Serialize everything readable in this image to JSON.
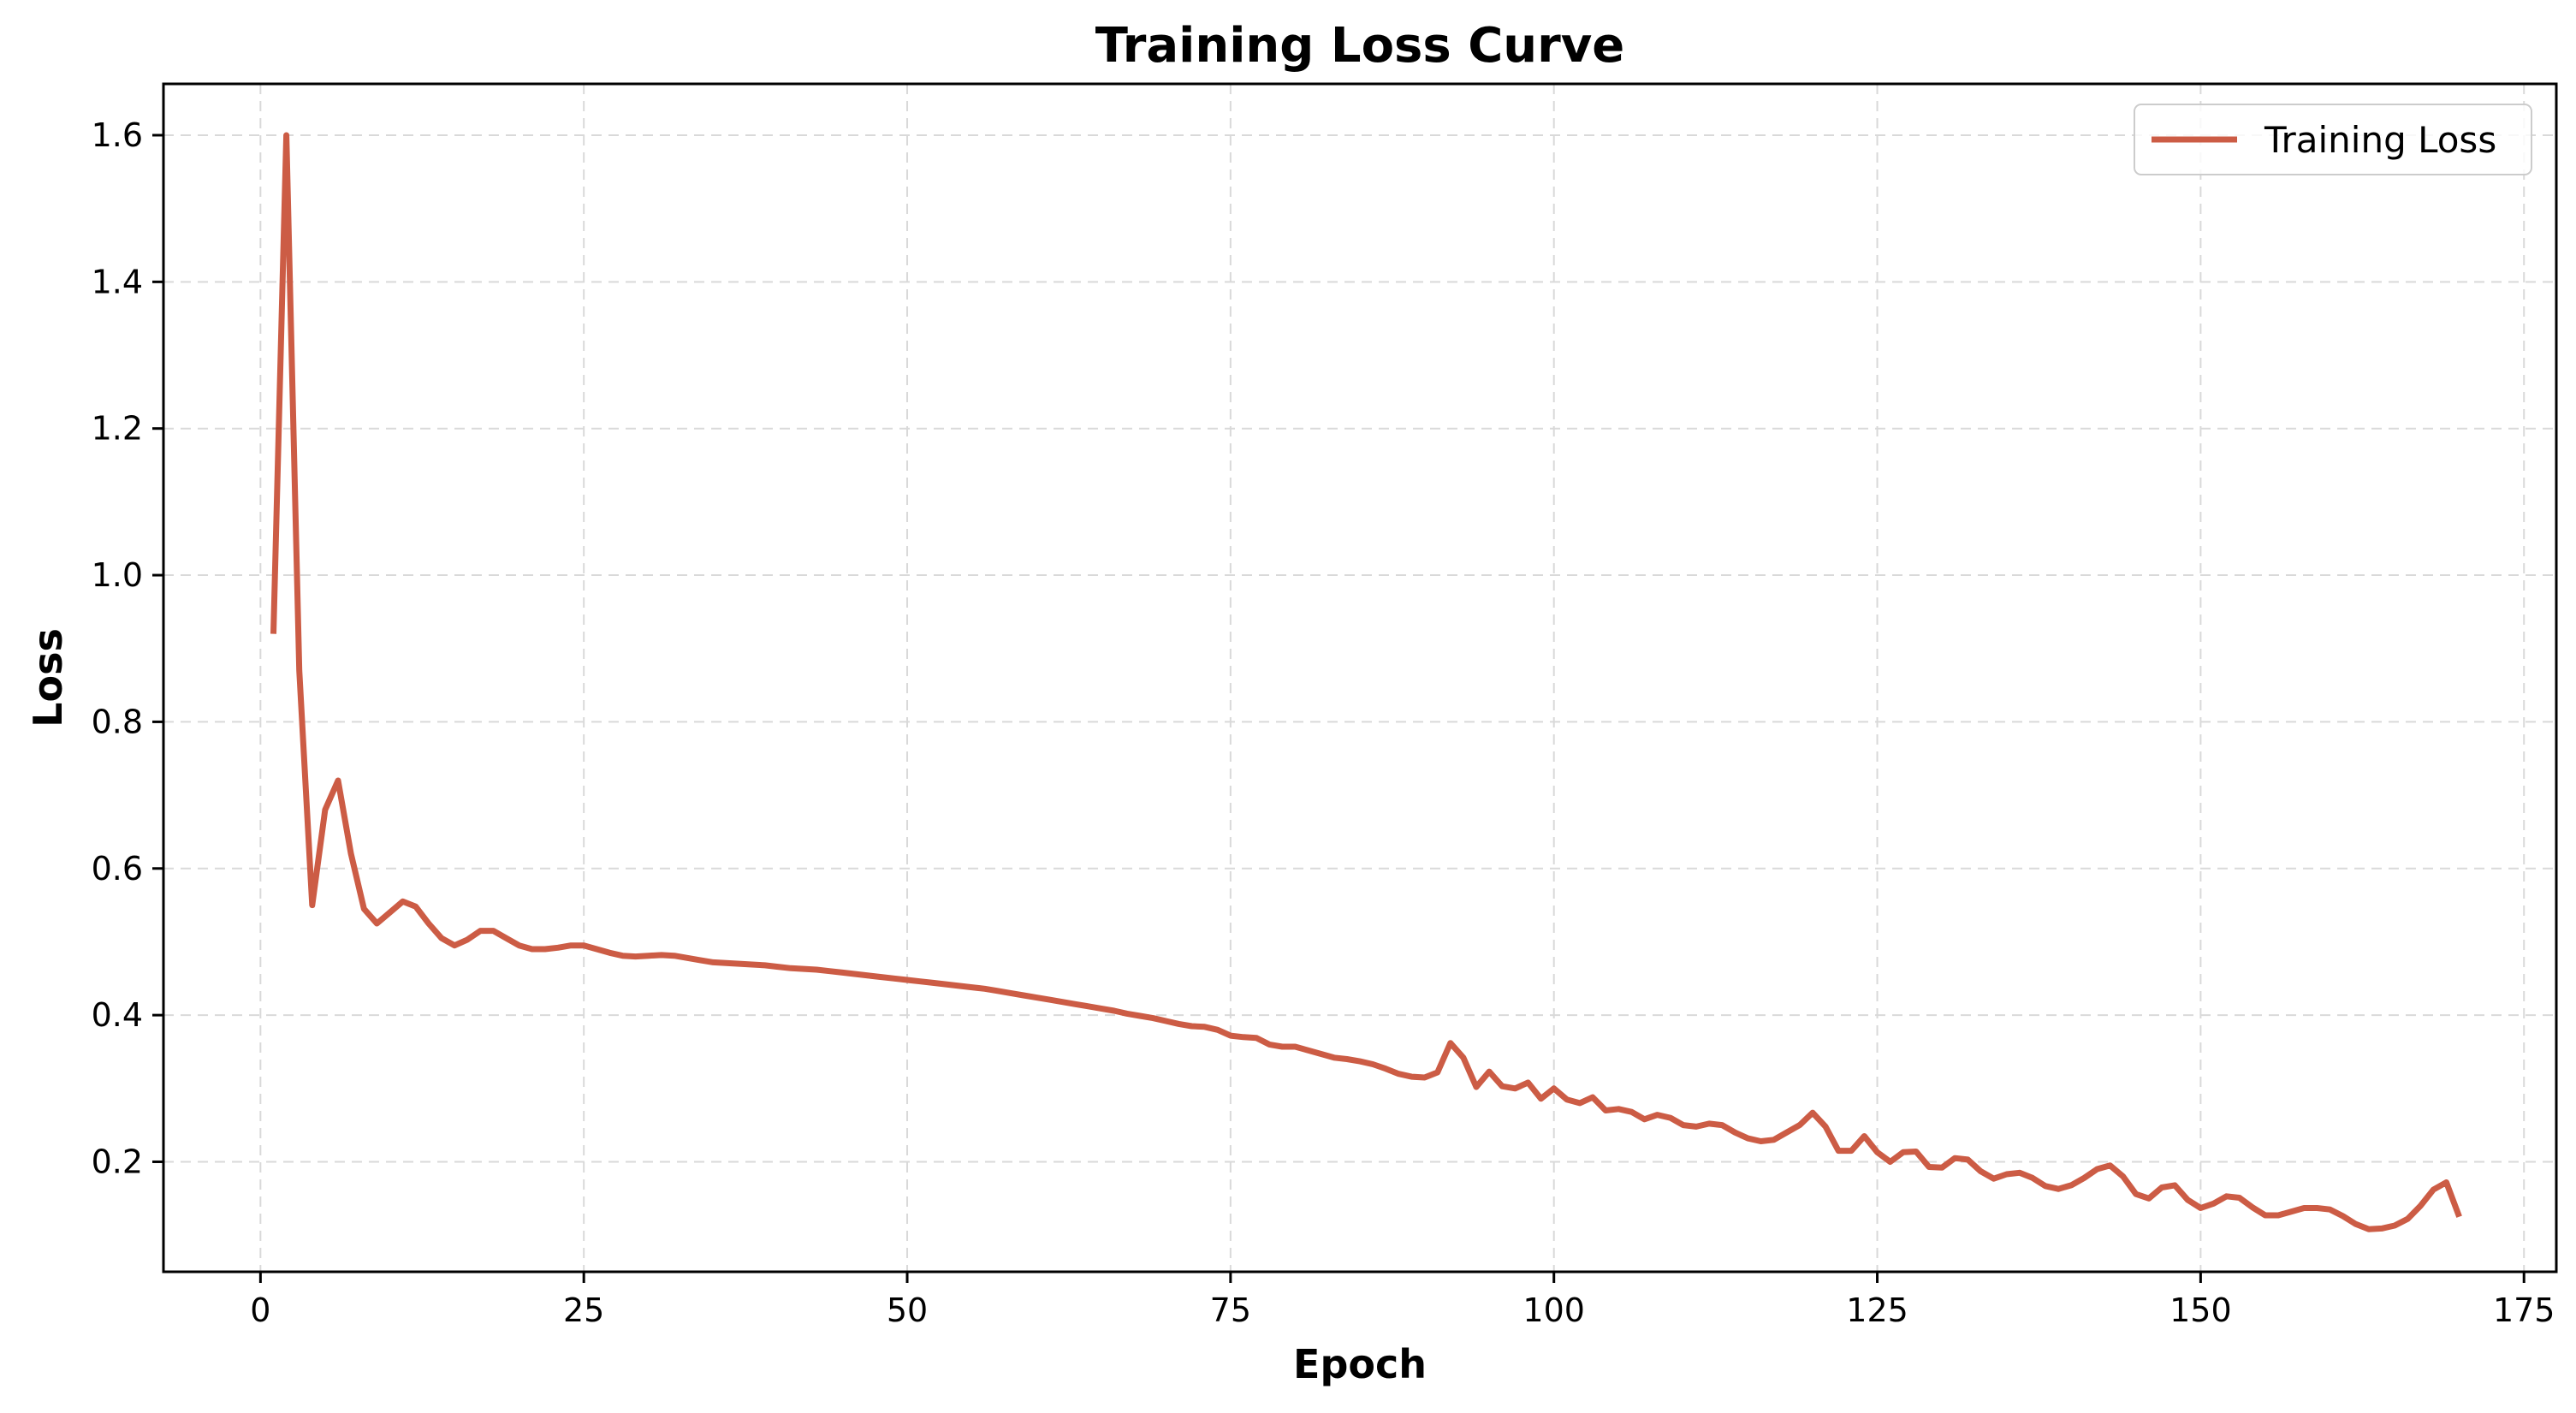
{
  "chart_data": {
    "type": "line",
    "title": "Training Loss Curve",
    "xlabel": "Epoch",
    "ylabel": "Loss",
    "xlim": [
      -7.5,
      177.5
    ],
    "ylim": [
      0.05,
      1.67
    ],
    "xticks": [
      0,
      25,
      50,
      75,
      100,
      125,
      150,
      175
    ],
    "yticks": [
      0.2,
      0.4,
      0.6,
      0.8,
      1.0,
      1.2,
      1.4,
      1.6
    ],
    "ytick_labels": [
      "0.2",
      "0.4",
      "0.6",
      "0.8",
      "1.0",
      "1.2",
      "1.4",
      "1.6"
    ],
    "grid": true,
    "legend_position": "top-right",
    "color": "#cc5c45",
    "series": [
      {
        "name": "Training Loss",
        "x": [
          1,
          2,
          3,
          4,
          5,
          6,
          7,
          8,
          9,
          10,
          11,
          12,
          13,
          14,
          15,
          16,
          17,
          18,
          19,
          20,
          21,
          22,
          23,
          24,
          25,
          26,
          27,
          28,
          29,
          30,
          31,
          32,
          33,
          34,
          35,
          36,
          37,
          38,
          39,
          40,
          41,
          42,
          43,
          44,
          45,
          46,
          47,
          48,
          49,
          50,
          51,
          52,
          53,
          54,
          55,
          56,
          57,
          58,
          59,
          60,
          61,
          62,
          63,
          64,
          65,
          66,
          67,
          68,
          69,
          70,
          71,
          72,
          73,
          74,
          75,
          76,
          77,
          78,
          79,
          80,
          81,
          82,
          83,
          84,
          85,
          86,
          87,
          88,
          89,
          90,
          91,
          92,
          93,
          94,
          95,
          96,
          97,
          98,
          99,
          100,
          101,
          102,
          103,
          104,
          105,
          106,
          107,
          108,
          109,
          110,
          111,
          112,
          113,
          114,
          115,
          116,
          117,
          118,
          119,
          120,
          121,
          122,
          123,
          124,
          125,
          126,
          127,
          128,
          129,
          130,
          131,
          132,
          133,
          134,
          135,
          136,
          137,
          138,
          139,
          140,
          141,
          142,
          143,
          144,
          145,
          146,
          147,
          148,
          149,
          150,
          151,
          152,
          153,
          154,
          155,
          156,
          157,
          158,
          159,
          160,
          161,
          162,
          163,
          164,
          165,
          166,
          167,
          168,
          169,
          170
        ],
        "y": [
          0.92,
          1.6,
          0.87,
          0.55,
          0.68,
          0.72,
          0.62,
          0.545,
          0.525,
          0.54,
          0.555,
          0.548,
          0.525,
          0.505,
          0.495,
          0.503,
          0.515,
          0.515,
          0.505,
          0.495,
          0.49,
          0.49,
          0.492,
          0.495,
          0.495,
          0.49,
          0.485,
          0.481,
          0.48,
          0.481,
          0.482,
          0.481,
          0.478,
          0.475,
          0.472,
          0.471,
          0.47,
          0.469,
          0.468,
          0.466,
          0.464,
          0.463,
          0.462,
          0.46,
          0.458,
          0.456,
          0.454,
          0.452,
          0.45,
          0.448,
          0.446,
          0.444,
          0.442,
          0.44,
          0.438,
          0.436,
          0.433,
          0.43,
          0.427,
          0.424,
          0.421,
          0.418,
          0.415,
          0.412,
          0.409,
          0.406,
          0.402,
          0.399,
          0.396,
          0.392,
          0.388,
          0.385,
          0.384,
          0.38,
          0.372,
          0.37,
          0.369,
          0.36,
          0.357,
          0.357,
          0.352,
          0.347,
          0.342,
          0.34,
          0.337,
          0.333,
          0.327,
          0.32,
          0.316,
          0.315,
          0.322,
          0.362,
          0.342,
          0.302,
          0.323,
          0.303,
          0.3,
          0.308,
          0.286,
          0.3,
          0.285,
          0.28,
          0.288,
          0.27,
          0.272,
          0.268,
          0.258,
          0.264,
          0.26,
          0.25,
          0.248,
          0.252,
          0.25,
          0.24,
          0.232,
          0.228,
          0.23,
          0.24,
          0.25,
          0.267,
          0.248,
          0.215,
          0.215,
          0.235,
          0.213,
          0.2,
          0.213,
          0.214,
          0.193,
          0.192,
          0.205,
          0.203,
          0.187,
          0.177,
          0.183,
          0.185,
          0.178,
          0.167,
          0.163,
          0.168,
          0.178,
          0.19,
          0.195,
          0.18,
          0.156,
          0.15,
          0.165,
          0.168,
          0.148,
          0.137,
          0.143,
          0.153,
          0.151,
          0.138,
          0.127,
          0.127,
          0.132,
          0.137,
          0.137,
          0.135,
          0.126,
          0.115,
          0.108,
          0.109,
          0.113,
          0.122,
          0.14,
          0.162,
          0.172,
          0.125
        ]
      }
    ]
  }
}
